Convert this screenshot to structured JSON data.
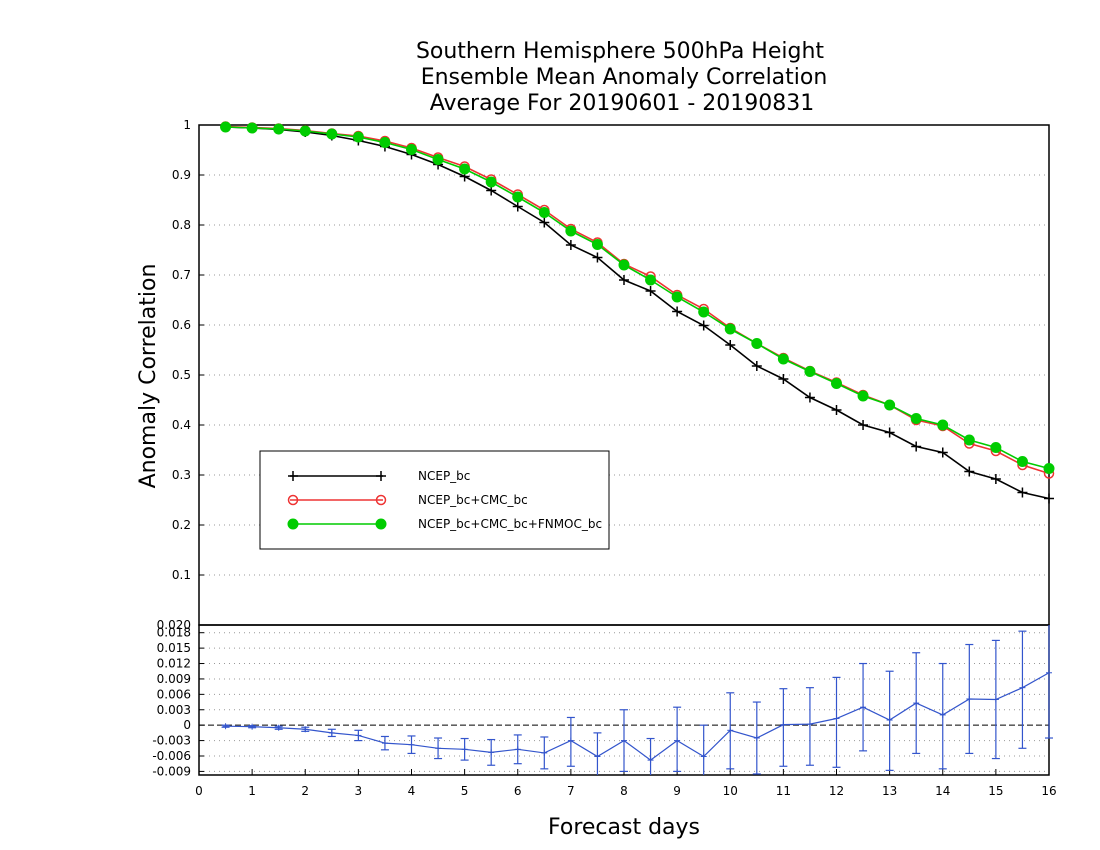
{
  "chart_data": {
    "type": "line",
    "title_lines": [
      "Southern Hemisphere 500hPa Height",
      "Ensemble Mean Anomaly Correlation",
      "Average For 20190601 - 20190831"
    ],
    "ylabel": "Anomaly Correlation",
    "xlabel": "Forecast days",
    "xlim": [
      0,
      16
    ],
    "ylim": [
      0,
      1
    ],
    "diff_ylim": [
      -0.0097,
      0.0195
    ],
    "grid": true,
    "legend_position": "lower-left",
    "x_ticks": [
      "0",
      "1",
      "2",
      "3",
      "4",
      "5",
      "6",
      "7",
      "8",
      "9",
      "10",
      "11",
      "12",
      "13",
      "14",
      "15",
      "16"
    ],
    "y_ticks": [
      "0.1",
      "0.2",
      "0.3",
      "0.4",
      "0.5",
      "0.6",
      "0.7",
      "0.8",
      "0.9",
      "1"
    ],
    "diff_y_ticks": [
      "-0.009",
      "-0.006",
      "-0.003",
      "0",
      "0.003",
      "0.006",
      "0.009",
      "0.012",
      "0.015",
      "0.018",
      "0.020"
    ],
    "x": [
      0.5,
      1,
      1.5,
      2,
      2.5,
      3,
      3.5,
      4,
      4.5,
      5,
      5.5,
      6,
      6.5,
      7,
      7.5,
      8,
      8.5,
      9,
      9.5,
      10,
      10.5,
      11,
      11.5,
      12,
      12.5,
      13,
      13.5,
      14,
      14.5,
      15,
      15.5,
      16
    ],
    "series": [
      {
        "name": "NCEP_bc",
        "color": "#000000",
        "marker": "plus",
        "values": [
          0.996,
          0.994,
          0.991,
          0.986,
          0.979,
          0.969,
          0.957,
          0.941,
          0.921,
          0.897,
          0.869,
          0.837,
          0.805,
          0.76,
          0.735,
          0.69,
          0.668,
          0.627,
          0.599,
          0.56,
          0.518,
          0.492,
          0.455,
          0.43,
          0.4,
          0.385,
          0.357,
          0.345,
          0.307,
          0.292,
          0.265,
          0.253
        ]
      },
      {
        "name": "NCEP_bc+CMC_bc",
        "color": "#ee3333",
        "marker": "open-circle",
        "values": [
          0.997,
          0.995,
          0.993,
          0.989,
          0.983,
          0.978,
          0.968,
          0.954,
          0.935,
          0.917,
          0.891,
          0.861,
          0.83,
          0.792,
          0.765,
          0.722,
          0.697,
          0.66,
          0.632,
          0.594,
          0.563,
          0.534,
          0.508,
          0.485,
          0.46,
          0.44,
          0.41,
          0.398,
          0.363,
          0.348,
          0.32,
          0.303
        ]
      },
      {
        "name": "NCEP_bc+CMC_bc+FNMOC_bc",
        "color": "#00cc00",
        "marker": "filled-circle",
        "values": [
          0.996,
          0.994,
          0.992,
          0.988,
          0.982,
          0.976,
          0.965,
          0.951,
          0.931,
          0.912,
          0.886,
          0.856,
          0.825,
          0.788,
          0.761,
          0.72,
          0.69,
          0.656,
          0.626,
          0.592,
          0.563,
          0.532,
          0.507,
          0.483,
          0.458,
          0.44,
          0.413,
          0.4,
          0.37,
          0.355,
          0.327,
          0.313
        ]
      }
    ],
    "difference": {
      "color": "#3355cc",
      "values": [
        -0.0002,
        -0.0003,
        -0.0005,
        -0.0008,
        -0.0015,
        -0.002,
        -0.0035,
        -0.0038,
        -0.0045,
        -0.0047,
        -0.0053,
        -0.0047,
        -0.0054,
        -0.003,
        -0.0061,
        -0.003,
        -0.0068,
        -0.003,
        -0.0061,
        -0.001,
        -0.0025,
        0.0001,
        0.0002,
        0.0013,
        0.0035,
        0.001,
        0.0043,
        0.002,
        0.0051,
        0.005,
        0.0073,
        0.0102
      ],
      "err_low": [
        -0.0004,
        -0.0005,
        -0.0008,
        -0.0012,
        -0.0022,
        -0.003,
        -0.0048,
        -0.0055,
        -0.0065,
        -0.0068,
        -0.0078,
        -0.0075,
        -0.0085,
        -0.008,
        -0.0107,
        -0.009,
        -0.011,
        -0.009,
        -0.0115,
        -0.0085,
        -0.0095,
        -0.008,
        -0.0078,
        -0.0082,
        -0.005,
        -0.0088,
        -0.0055,
        -0.0085,
        -0.0055,
        -0.0065,
        -0.0045,
        -0.0025
      ],
      "err_high": [
        0.0,
        -0.0001,
        -0.0002,
        -0.0004,
        -0.0008,
        -0.001,
        -0.0022,
        -0.0021,
        -0.0025,
        -0.0026,
        -0.0028,
        -0.0019,
        -0.0023,
        0.0015,
        -0.0015,
        0.003,
        -0.0026,
        0.0035,
        0.0,
        0.0063,
        0.0045,
        0.0071,
        0.0073,
        0.0093,
        0.012,
        0.0105,
        0.0141,
        0.012,
        0.0157,
        0.0165,
        0.0183,
        0.023
      ]
    }
  }
}
